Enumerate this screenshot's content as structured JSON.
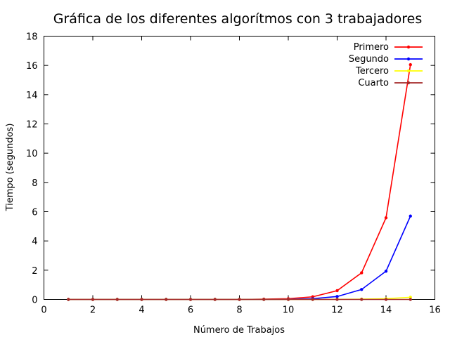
{
  "chart_data": {
    "type": "line",
    "title": "Gráfica de los diferentes algorítmos con 3 trabajadores",
    "xlabel": "Número de Trabajos",
    "ylabel": "Tiempo (segundos)",
    "xlim": [
      0,
      16
    ],
    "ylim": [
      0,
      18
    ],
    "xticks": [
      "0",
      "2",
      "4",
      "6",
      "8",
      "10",
      "12",
      "14",
      "16"
    ],
    "yticks": [
      "0",
      "2",
      "4",
      "6",
      "8",
      "10",
      "12",
      "14",
      "16",
      "18"
    ],
    "grid": false,
    "legend_position": "top-right",
    "x": [
      1,
      2,
      3,
      4,
      5,
      6,
      7,
      8,
      9,
      10,
      11,
      12,
      13,
      14,
      15
    ],
    "series": [
      {
        "name": "Primero",
        "color": "#ff0000",
        "values": [
          0,
          0,
          0,
          0,
          0,
          0,
          0,
          0,
          0.02,
          0.05,
          0.18,
          0.6,
          1.82,
          5.58,
          16.05
        ]
      },
      {
        "name": "Segundo",
        "color": "#0000ff",
        "values": [
          0,
          0,
          0,
          0,
          0,
          0,
          0,
          0,
          0,
          0.01,
          0.05,
          0.2,
          0.68,
          1.93,
          5.7
        ]
      },
      {
        "name": "Tercero",
        "color": "#ffff00",
        "values": [
          0,
          0,
          0,
          0,
          0,
          0,
          0,
          0,
          0,
          0,
          0,
          0.01,
          0.02,
          0.05,
          0.15
        ]
      },
      {
        "name": "Cuarto",
        "color": "#a52a2a",
        "values": [
          0,
          0,
          0,
          0,
          0,
          0,
          0,
          0,
          0,
          0,
          0,
          0,
          0,
          0,
          0
        ]
      }
    ]
  }
}
